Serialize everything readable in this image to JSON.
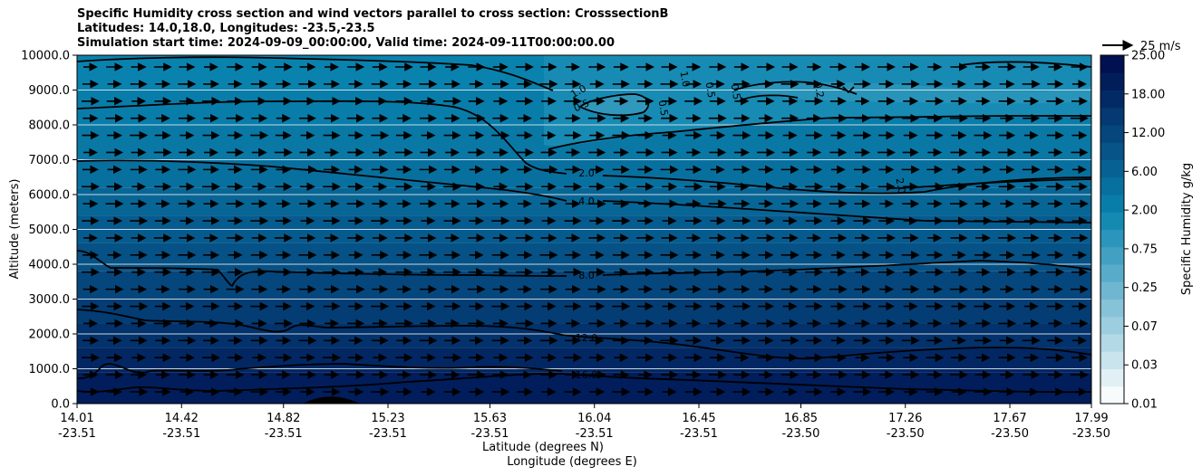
{
  "chart_data": {
    "type": "heatmap",
    "title_lines": [
      "Specific Humidity cross section and wind vectors parallel to cross section: CrosssectionB",
      "Latitudes: 14.0,18.0, Longitudes: -23.5,-23.5",
      "Simulation start time: 2024-09-09_00:00:00, Valid time: 2024-09-11T00:00:00.00"
    ],
    "ylabel": "Altitude (meters)",
    "xlabel_lines": [
      "Latitude (degrees N)",
      "Longitude (degrees E)"
    ],
    "ylim": [
      0,
      10000
    ],
    "y_ticks": [
      "0.0",
      "1000.0",
      "2000.0",
      "3000.0",
      "4000.0",
      "5000.0",
      "6000.0",
      "7000.0",
      "8000.0",
      "9000.0",
      "10000.0"
    ],
    "x_ticks": [
      {
        "lat": "14.01",
        "lon": "-23.51"
      },
      {
        "lat": "14.42",
        "lon": "-23.51"
      },
      {
        "lat": "14.82",
        "lon": "-23.51"
      },
      {
        "lat": "15.23",
        "lon": "-23.51"
      },
      {
        "lat": "15.63",
        "lon": "-23.51"
      },
      {
        "lat": "16.04",
        "lon": "-23.51"
      },
      {
        "lat": "16.45",
        "lon": "-23.51"
      },
      {
        "lat": "16.85",
        "lon": "-23.50"
      },
      {
        "lat": "17.26",
        "lon": "-23.50"
      },
      {
        "lat": "17.67",
        "lon": "-23.50"
      },
      {
        "lat": "17.99",
        "lon": "-23.50"
      }
    ],
    "contour_labels": [
      "1.0",
      "0.5",
      "0.5",
      "1.0",
      "0.5",
      "0.5",
      "0.2",
      "2.0",
      "4.0",
      "2.0",
      "8.0",
      "12.0",
      "16.0"
    ],
    "colorbar": {
      "label": "Specific Humidity g/kg",
      "tick_labels": [
        "0.01",
        "0.03",
        "0.07",
        "0.25",
        "0.75",
        "2.00",
        "6.00",
        "12.00",
        "18.00",
        "25.00"
      ],
      "levels": 20,
      "color_low": "#f7fbfc",
      "color_mid": "#0a85b0",
      "color_high": "#001050"
    },
    "wind_reference": "25 m/s",
    "grid": true
  }
}
